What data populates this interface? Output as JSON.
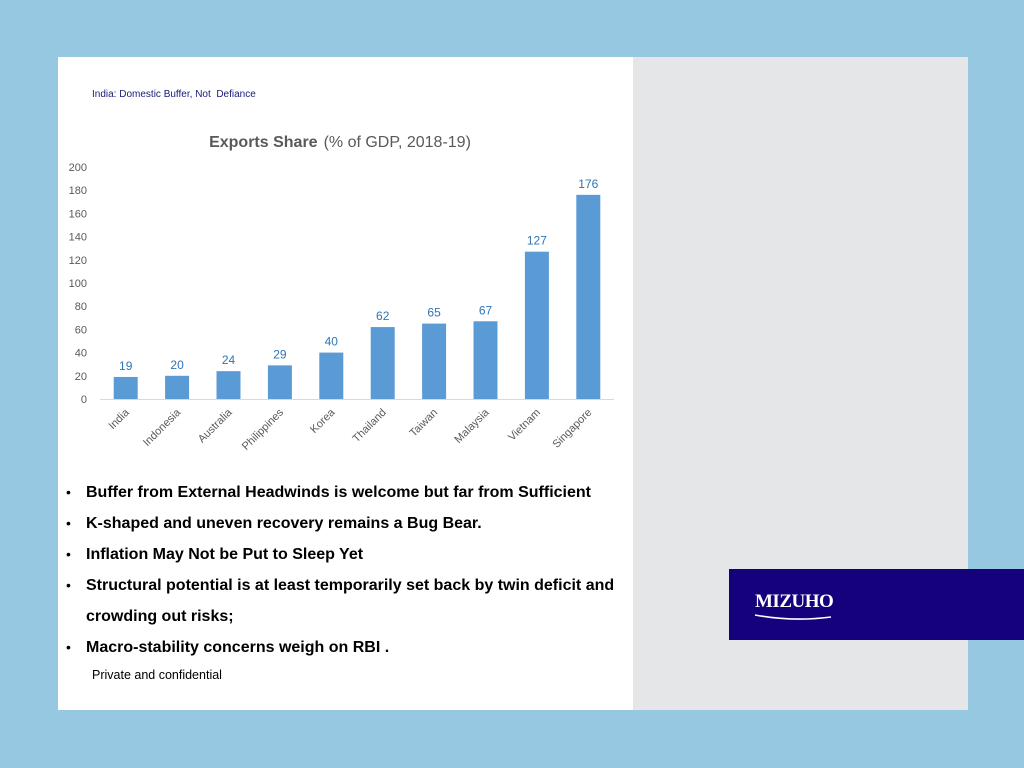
{
  "subtitle": "India: Domestic Buffer, Not  Defiance",
  "chart_data": {
    "type": "bar",
    "title": "Exports Share",
    "title_suffix": "(% of GDP, 2018-19)",
    "categories": [
      "India",
      "Indonesia",
      "Australia",
      "Philippines",
      "Korea",
      "Thailand",
      "Taiwan",
      "Malaysia",
      "Vietnam",
      "Singapore"
    ],
    "values": [
      19,
      20,
      24,
      29,
      40,
      62,
      65,
      67,
      127,
      176
    ],
    "ylim": [
      0,
      200
    ],
    "yticks": [
      0,
      20,
      40,
      60,
      80,
      100,
      120,
      140,
      160,
      180,
      200
    ],
    "grid": false,
    "bar_color": "#5b9bd5",
    "label_color": "#2e75b6"
  },
  "bullets": [
    "Buffer from External Headwinds is welcome but far from Sufficient",
    "K-shaped and uneven recovery remains a Bug Bear.",
    "Inflation May Not be Put to Sleep Yet",
    "Structural potential is at least temporarily set back by twin deficit and crowding out risks;",
    "Macro-stability concerns weigh on RBI ."
  ],
  "bullet_symbol": "•",
  "footer": "Private and confidential",
  "brand": {
    "logo_text": "MIZUHO",
    "bar_color": "#16017d"
  }
}
